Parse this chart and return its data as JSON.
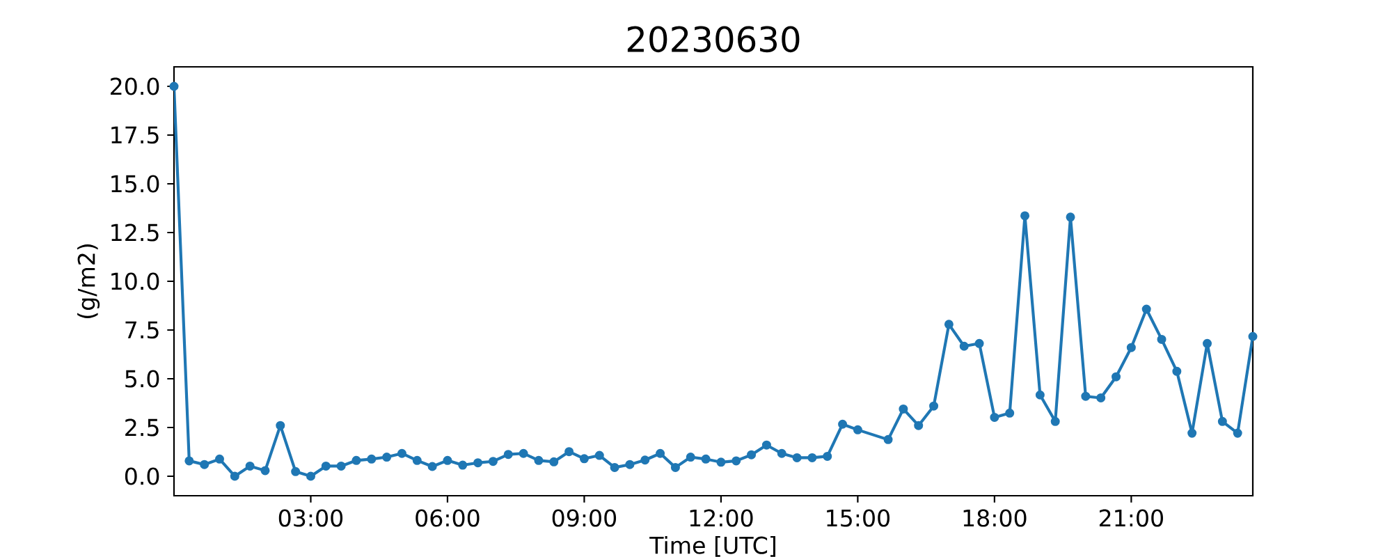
{
  "chart_data": {
    "type": "line",
    "title": "20230630",
    "xlabel": "Time [UTC]",
    "ylabel": "(g/m2)",
    "x": [
      0,
      0.3333,
      0.6667,
      1,
      1.3333,
      1.6667,
      2,
      2.3333,
      2.6667,
      3,
      3.3333,
      3.6667,
      4,
      4.3333,
      4.6667,
      5,
      5.3333,
      5.6667,
      6,
      6.3333,
      6.6667,
      7,
      7.3333,
      7.6667,
      8,
      8.3333,
      8.6667,
      9,
      9.3333,
      9.6667,
      10,
      10.3333,
      10.6667,
      11,
      11.3333,
      11.6667,
      12,
      12.3333,
      12.6667,
      13,
      13.3333,
      13.6667,
      14,
      14.3333,
      14.6667,
      15,
      15.6667,
      16,
      16.3333,
      16.6667,
      17,
      17.3333,
      17.6667,
      18,
      18.3333,
      18.6667,
      19,
      19.3333,
      19.6667,
      20,
      20.3333,
      20.6667,
      21,
      21.3333,
      21.6667,
      22,
      22.3333,
      22.6667,
      23,
      23.3333,
      23.6667
    ],
    "series": [
      {
        "color": "#1f77b4",
        "values": [
          20.0,
          0.79,
          0.6,
          0.88,
          0.0,
          0.52,
          0.29,
          2.6,
          0.24,
          0.0,
          0.52,
          0.52,
          0.81,
          0.88,
          0.98,
          1.17,
          0.81,
          0.5,
          0.81,
          0.57,
          0.69,
          0.76,
          1.12,
          1.17,
          0.81,
          0.74,
          1.26,
          0.9,
          1.07,
          0.45,
          0.6,
          0.83,
          1.17,
          0.45,
          0.98,
          0.88,
          0.72,
          0.79,
          1.1,
          1.6,
          1.17,
          0.95,
          0.95,
          1.02,
          2.67,
          2.38,
          1.88,
          3.45,
          2.6,
          3.6,
          7.79,
          6.67,
          6.81,
          3.02,
          3.24,
          13.36,
          4.17,
          2.81,
          13.29,
          4.1,
          4.02,
          5.1,
          6.6,
          8.57,
          7.02,
          5.38,
          2.21,
          6.81,
          2.81,
          2.21,
          7.17
        ]
      }
    ],
    "xlim": [
      0,
      23.6667
    ],
    "ylim": [
      -1,
      21
    ],
    "xticks": [
      {
        "value": 3,
        "label": "03:00"
      },
      {
        "value": 6,
        "label": "06:00"
      },
      {
        "value": 9,
        "label": "09:00"
      },
      {
        "value": 12,
        "label": "12:00"
      },
      {
        "value": 15,
        "label": "15:00"
      },
      {
        "value": 18,
        "label": "18:00"
      },
      {
        "value": 21,
        "label": "21:00"
      }
    ],
    "yticks": [
      {
        "value": 0,
        "label": "0.0"
      },
      {
        "value": 2.5,
        "label": "2.5"
      },
      {
        "value": 5,
        "label": "5.0"
      },
      {
        "value": 7.5,
        "label": "7.5"
      },
      {
        "value": 10,
        "label": "10.0"
      },
      {
        "value": 12.5,
        "label": "12.5"
      },
      {
        "value": 15,
        "label": "15.0"
      },
      {
        "value": 17.5,
        "label": "17.5"
      },
      {
        "value": 20,
        "label": "20.0"
      }
    ],
    "marker": "circle",
    "line_style": "solid",
    "grid": false
  }
}
